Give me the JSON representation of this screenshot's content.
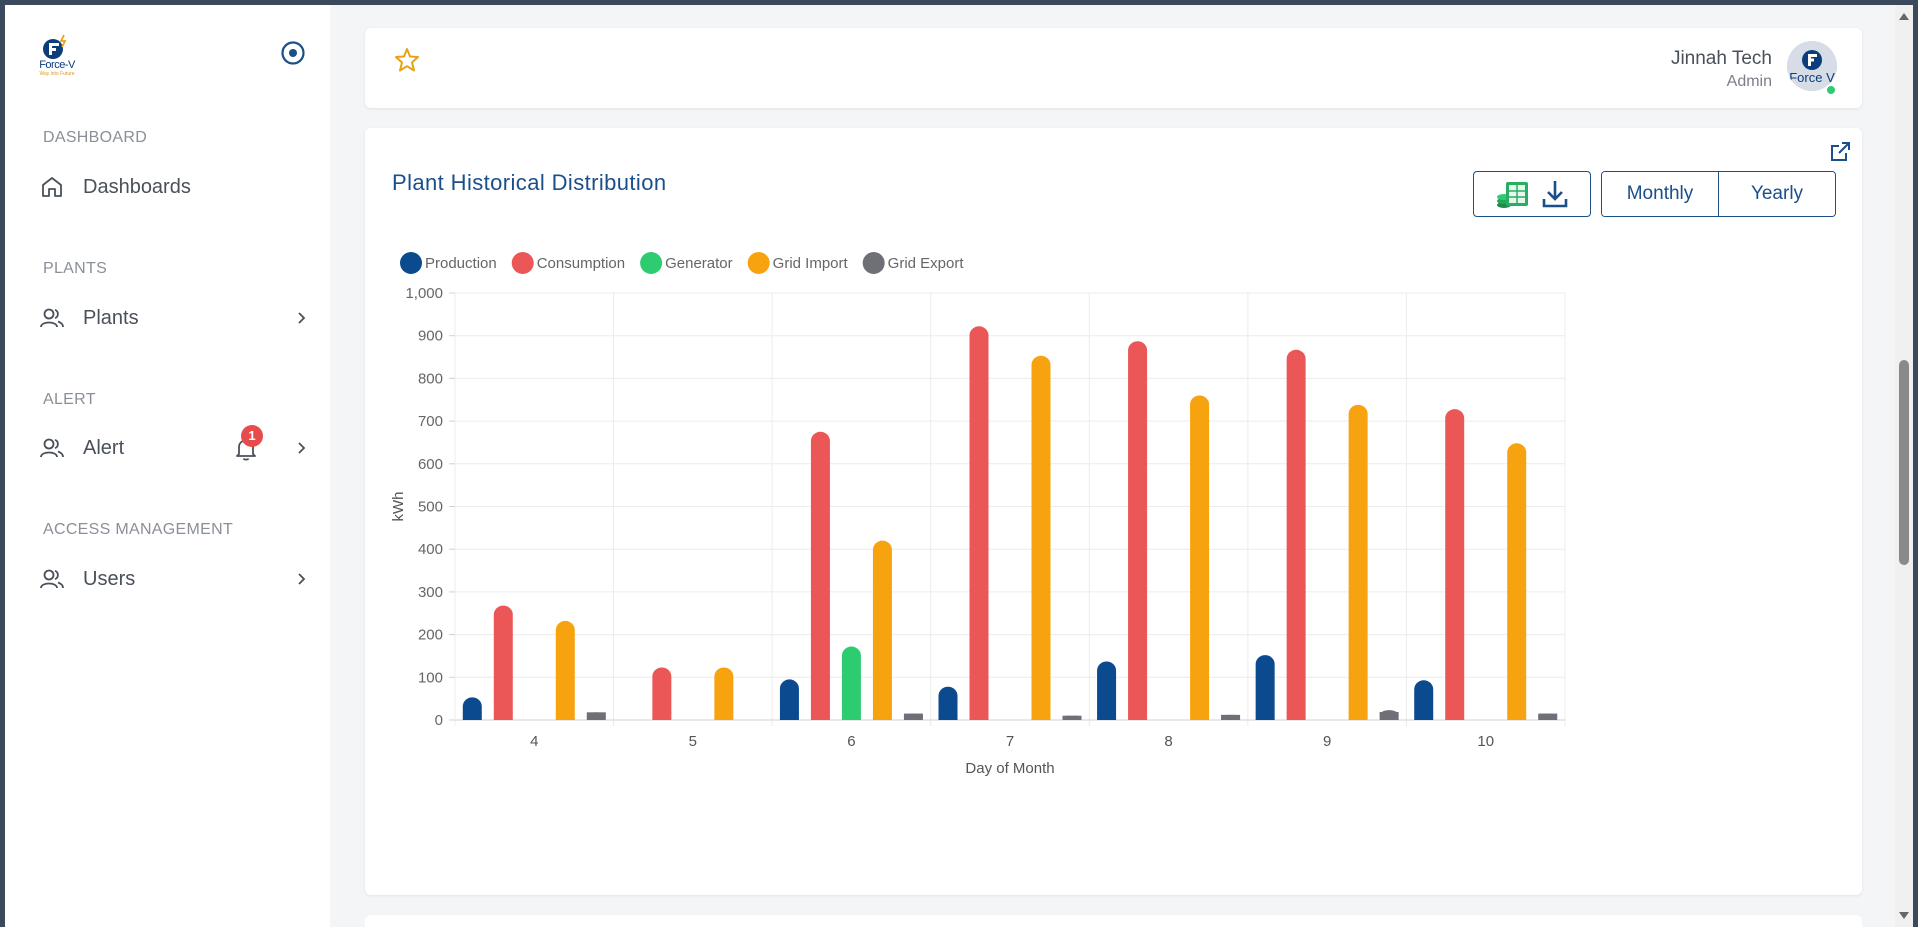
{
  "sidebar": {
    "logo": {
      "brand": "Force-V",
      "tagline": "Way into Future"
    },
    "sections": [
      {
        "label": "DASHBOARD",
        "item": "Dashboards",
        "icon": "home-icon",
        "chevron": false
      },
      {
        "label": "PLANTS",
        "item": "Plants",
        "icon": "users-icon",
        "chevron": true
      },
      {
        "label": "ALERT",
        "item": "Alert",
        "icon": "users-icon",
        "chevron": true,
        "badge": "1"
      },
      {
        "label": "ACCESS MANAGEMENT",
        "item": "Users",
        "icon": "users-icon",
        "chevron": true
      }
    ]
  },
  "header": {
    "user_name": "Jinnah Tech",
    "user_role": "Admin",
    "avatar_text": "Force V"
  },
  "card": {
    "title": "Plant Historical Distribution",
    "period_options": [
      "Monthly",
      "Yearly"
    ]
  },
  "colors": {
    "accent": "#1b4f8a",
    "production": "#0b4a8f",
    "consumption": "#eb5757",
    "generator": "#2ecc71",
    "grid_import": "#f7a30f",
    "grid_export": "#6f6f78"
  },
  "chart_data": {
    "type": "bar",
    "xlabel": "Day of Month",
    "ylabel": "kWh",
    "ylim": [
      0,
      1000
    ],
    "yticks": [
      "0",
      "100",
      "200",
      "300",
      "400",
      "500",
      "600",
      "700",
      "800",
      "900",
      "1,000"
    ],
    "grid": true,
    "legend": "top-left",
    "categories": [
      "4",
      "5",
      "6",
      "7",
      "8",
      "9",
      "10"
    ],
    "series": [
      {
        "name": "Production",
        "values": [
          53,
          0,
          95,
          78,
          137,
          152,
          93
        ]
      },
      {
        "name": "Consumption",
        "values": [
          268,
          123,
          675,
          922,
          887,
          867,
          728
        ]
      },
      {
        "name": "Generator",
        "values": [
          0,
          0,
          172,
          0,
          0,
          0,
          0
        ]
      },
      {
        "name": "Grid Import",
        "values": [
          232,
          123,
          420,
          853,
          760,
          738,
          648
        ]
      },
      {
        "name": "Grid Export",
        "values": [
          18,
          0,
          15,
          10,
          12,
          23,
          15
        ]
      }
    ]
  }
}
